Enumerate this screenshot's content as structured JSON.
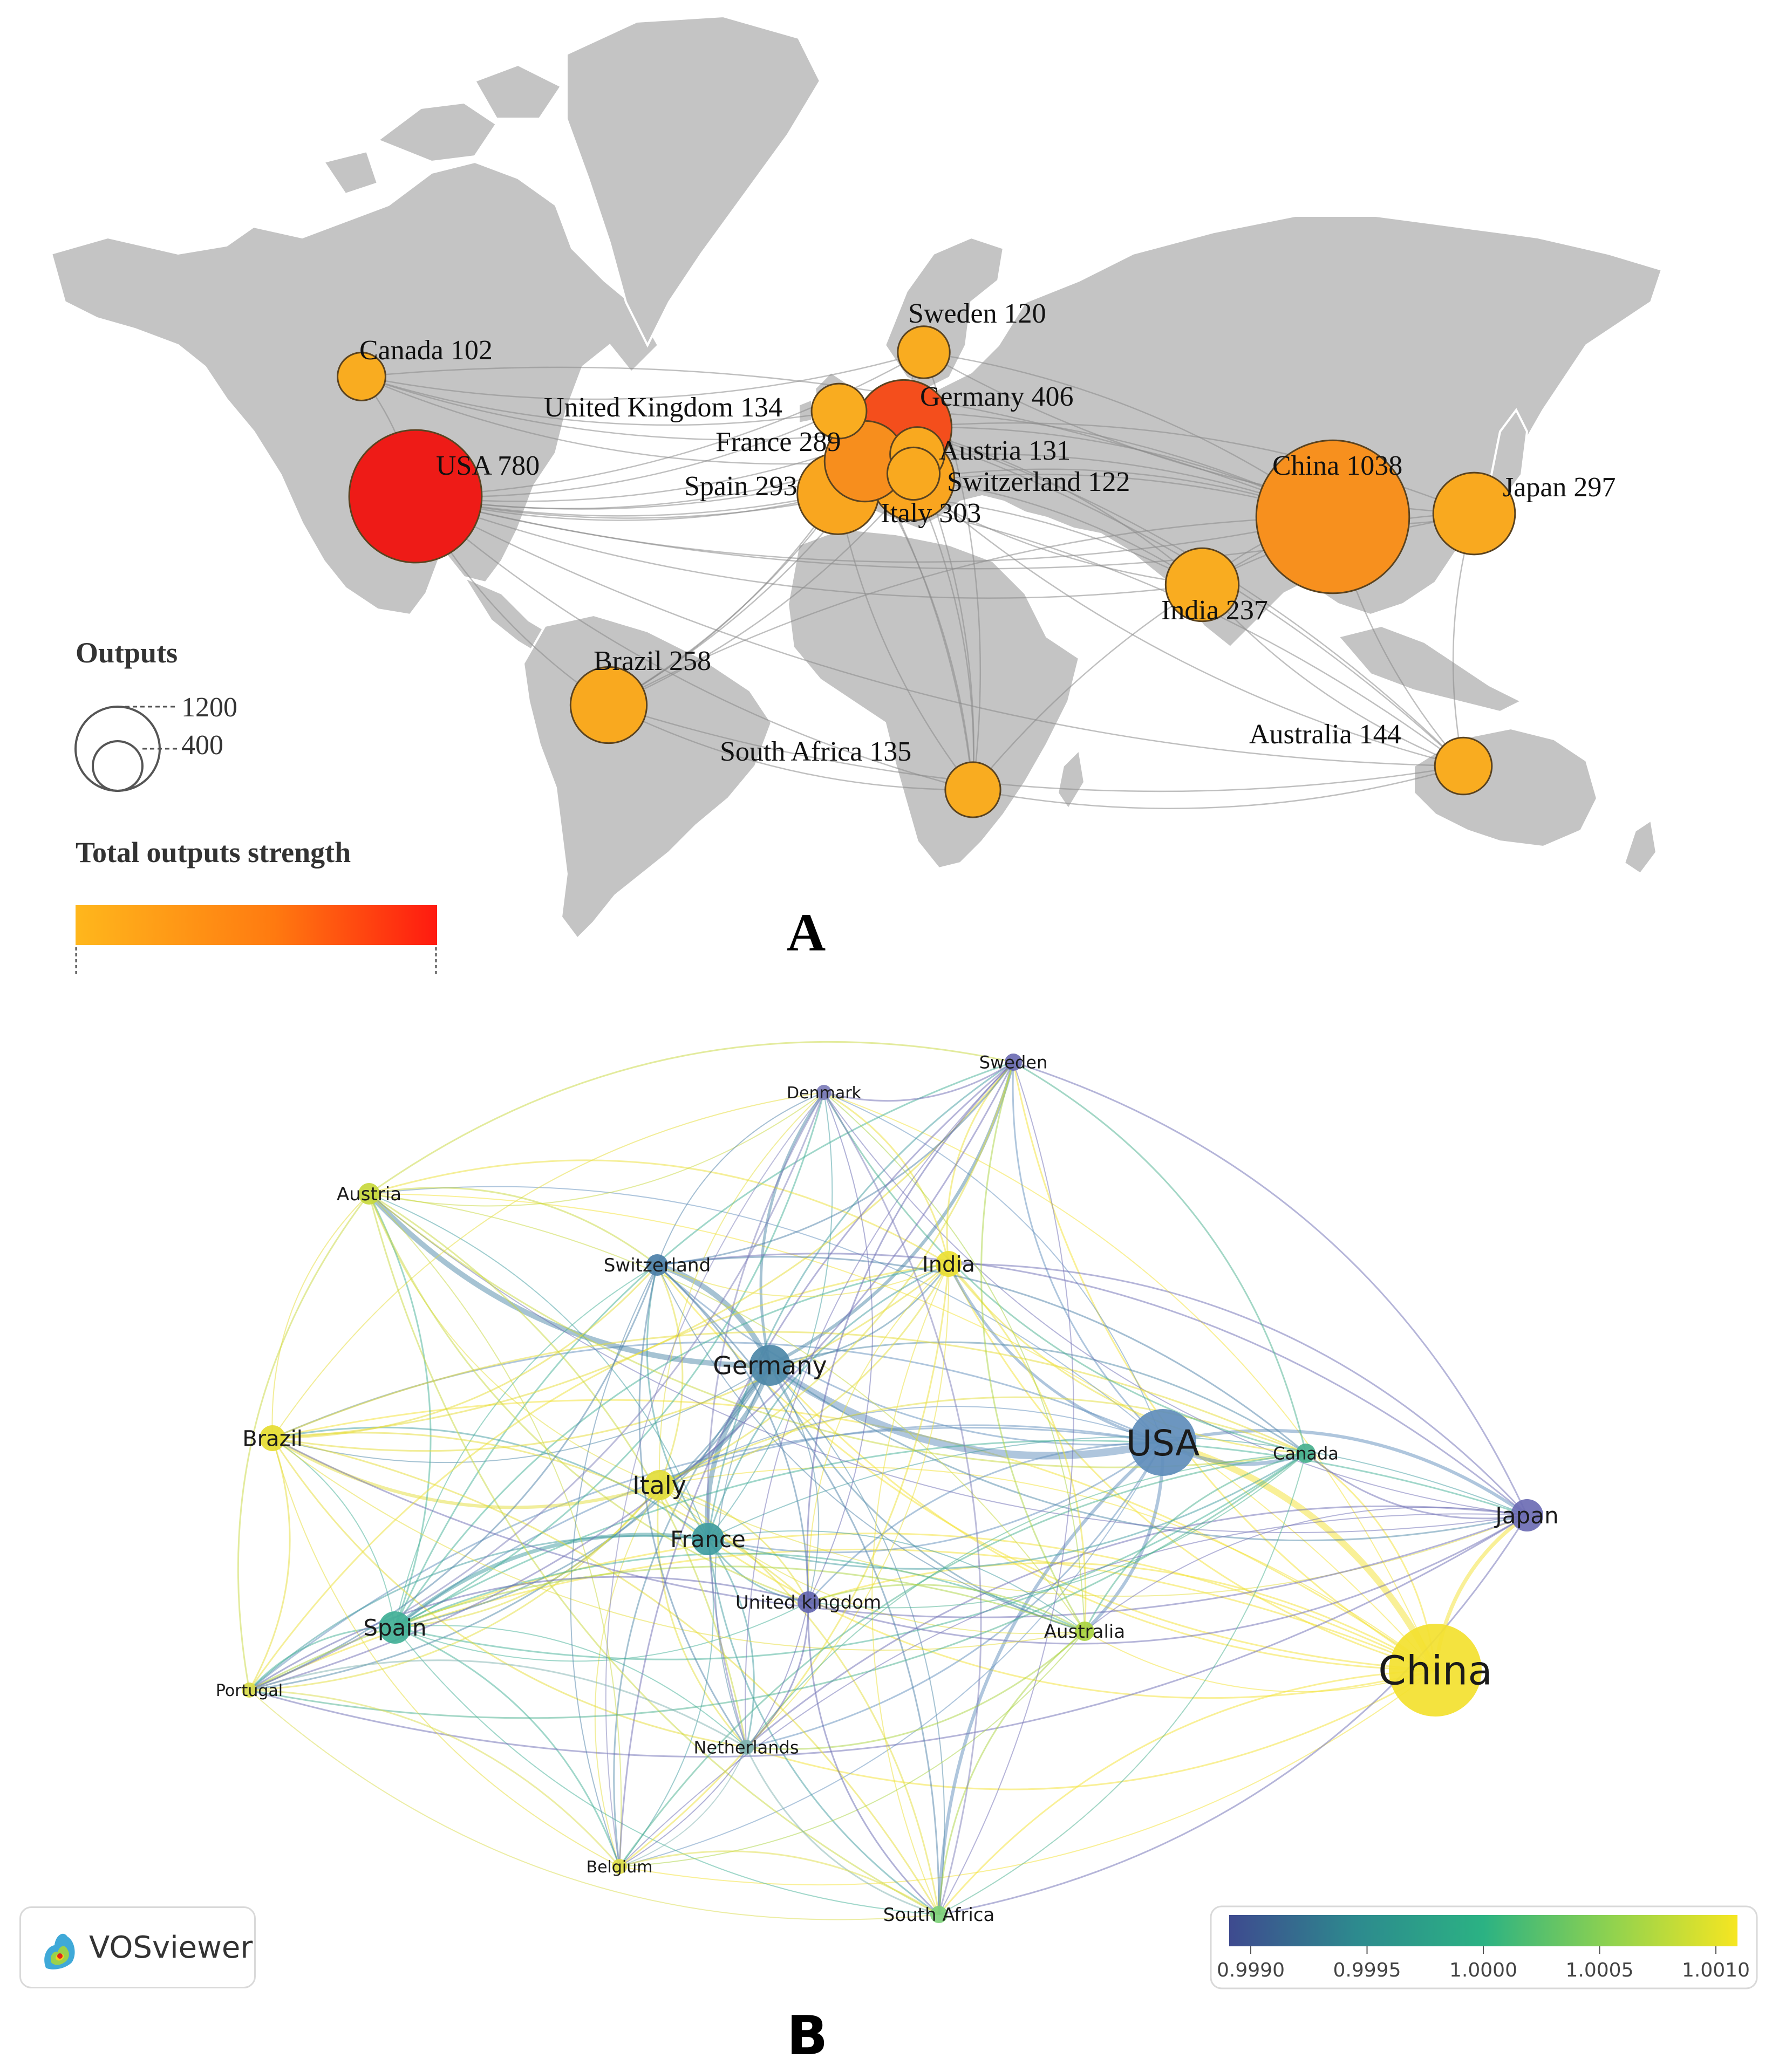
{
  "panel_a": {
    "label": "A",
    "legend": {
      "size_title": "Outputs",
      "size_values": [
        "1200",
        "400"
      ],
      "color_title": "Total outputs strength",
      "colors": [
        "#ffb71c",
        "#ff7a10",
        "#ff1a10"
      ]
    },
    "countries": [
      {
        "name": "USA",
        "value": 780,
        "label": "USA 780",
        "fill": "#ee1b17"
      },
      {
        "name": "China",
        "value": 1038,
        "label": "China 1038",
        "fill": "#f7901e"
      },
      {
        "name": "Germany",
        "value": 406,
        "label": "Germany 406",
        "fill": "#f44e1c"
      },
      {
        "name": "Italy",
        "value": 303,
        "label": "Italy 303",
        "fill": "#f9a51f"
      },
      {
        "name": "Japan",
        "value": 297,
        "label": "Japan 297",
        "fill": "#f9a91f"
      },
      {
        "name": "Spain",
        "value": 293,
        "label": "Spain 293",
        "fill": "#f9a61f"
      },
      {
        "name": "France",
        "value": 289,
        "label": "France 289",
        "fill": "#f78e1d"
      },
      {
        "name": "Brazil",
        "value": 258,
        "label": "Brazil 258",
        "fill": "#f9a91f"
      },
      {
        "name": "India",
        "value": 237,
        "label": "India 237",
        "fill": "#f9ac20"
      },
      {
        "name": "Australia",
        "value": 144,
        "label": "Australia 144",
        "fill": "#f9ac20"
      },
      {
        "name": "South Africa",
        "value": 135,
        "label": "South Africa 135",
        "fill": "#f9ac20"
      },
      {
        "name": "United Kingdom",
        "value": 134,
        "label": "United Kingdom 134",
        "fill": "#f9ac20"
      },
      {
        "name": "Austria",
        "value": 131,
        "label": "Austria 131",
        "fill": "#f9a91f"
      },
      {
        "name": "Switzerland",
        "value": 122,
        "label": "Switzerland 122",
        "fill": "#f9a91f"
      },
      {
        "name": "Sweden",
        "value": 120,
        "label": "Sweden 120",
        "fill": "#f9ac20"
      },
      {
        "name": "Canada",
        "value": 102,
        "label": "Canada 102",
        "fill": "#f9ac20"
      }
    ]
  },
  "panel_b": {
    "label": "B",
    "brand": "VOSviewer",
    "colorbar": {
      "ticks": [
        "0.9990",
        "0.9995",
        "1.0000",
        "1.0005",
        "1.0010"
      ],
      "colors": [
        "#3e4a8f",
        "#2d8a8e",
        "#2bb283",
        "#8fd24f",
        "#f6e621"
      ]
    },
    "nodes": [
      {
        "name": "China",
        "color": "#f3e12f"
      },
      {
        "name": "USA",
        "color": "#5f8dbb"
      },
      {
        "name": "Germany",
        "color": "#4d88a8"
      },
      {
        "name": "Italy",
        "color": "#e3dd3a"
      },
      {
        "name": "France",
        "color": "#3f9ca0"
      },
      {
        "name": "Spain",
        "color": "#41b096"
      },
      {
        "name": "Japan",
        "color": "#6c6cb4"
      },
      {
        "name": "Brazil",
        "color": "#e6dc31"
      },
      {
        "name": "India",
        "color": "#ecdf33"
      },
      {
        "name": "Austria",
        "color": "#c8d83c"
      },
      {
        "name": "Switzerland",
        "color": "#4b7fa8"
      },
      {
        "name": "Canada",
        "color": "#48b08e"
      },
      {
        "name": "Australia",
        "color": "#a9d440"
      },
      {
        "name": "United kingdom",
        "color": "#6466b0"
      },
      {
        "name": "Sweden",
        "color": "#6d6cb3"
      },
      {
        "name": "Denmark",
        "color": "#7c7cb8"
      },
      {
        "name": "Netherlands",
        "color": "#7fb2b0"
      },
      {
        "name": "Portugal",
        "color": "#d9dc4a"
      },
      {
        "name": "Belgium",
        "color": "#e0de46"
      },
      {
        "name": "South Africa",
        "color": "#7dd07a"
      }
    ]
  }
}
